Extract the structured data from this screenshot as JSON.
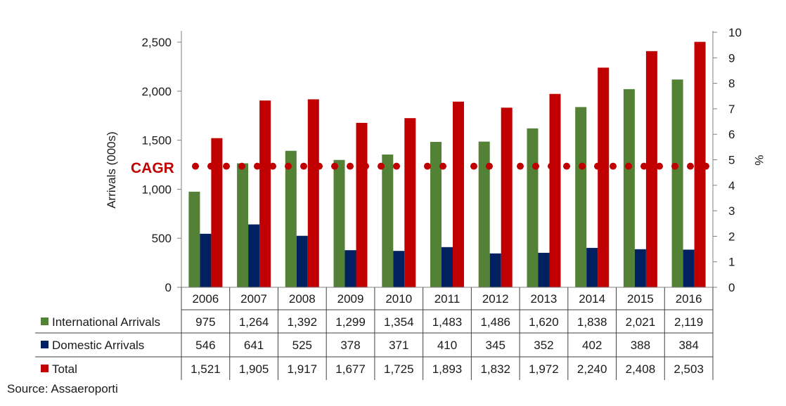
{
  "chart_data": {
    "type": "bar",
    "categories": [
      "2006",
      "2007",
      "2008",
      "2009",
      "2010",
      "2011",
      "2012",
      "2013",
      "2014",
      "2015",
      "2016"
    ],
    "series": [
      {
        "name": "International Arrivals",
        "color": "#538135",
        "values": [
          975,
          1264,
          1392,
          1299,
          1354,
          1483,
          1486,
          1620,
          1838,
          2021,
          2119
        ],
        "labels": [
          "975",
          "1,264",
          "1,392",
          "1,299",
          "1,354",
          "1,483",
          "1,486",
          "1,620",
          "1,838",
          "2,021",
          "2,119"
        ]
      },
      {
        "name": "Domestic Arrivals",
        "color": "#002060",
        "values": [
          546,
          641,
          525,
          378,
          371,
          410,
          345,
          352,
          402,
          388,
          384
        ],
        "labels": [
          "546",
          "641",
          "525",
          "378",
          "371",
          "410",
          "345",
          "352",
          "402",
          "388",
          "384"
        ]
      },
      {
        "name": "Total",
        "color": "#c00000",
        "values": [
          1521,
          1905,
          1917,
          1677,
          1725,
          1893,
          1832,
          1972,
          2240,
          2408,
          2503
        ],
        "labels": [
          "1,521",
          "1,905",
          "1,917",
          "1,677",
          "1,725",
          "1,893",
          "1,832",
          "1,972",
          "2,240",
          "2,408",
          "2,503"
        ]
      }
    ],
    "ylabel": "Arrivals (000s)",
    "ylim": [
      0,
      2500
    ],
    "yticks": [
      0,
      500,
      1000,
      1500,
      2000,
      2500
    ],
    "ytick_labels": [
      "0",
      "500",
      "1,000",
      "1,500",
      "2,000",
      "2,500"
    ],
    "y2label": "%",
    "y2lim": [
      0,
      10
    ],
    "y2ticks": [
      0,
      1,
      2,
      3,
      4,
      5,
      6,
      7,
      8,
      9,
      10
    ],
    "cagr": {
      "label": "CAGR",
      "value": 4.75,
      "color": "#c00000",
      "style": "dotted"
    },
    "legend_placement": "data-table-left"
  },
  "source": "Source: Assaeroporti"
}
